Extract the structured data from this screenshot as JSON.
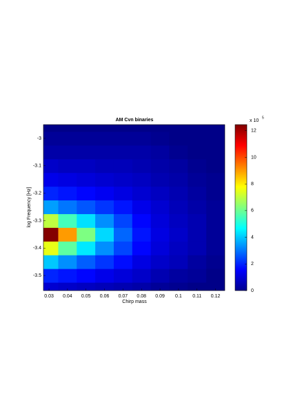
{
  "chart_data": {
    "type": "contour",
    "title": "AM Cvn binaries",
    "xlabel": "Chirp mass",
    "ylabel": "log Frequency [Hz]",
    "x": [
      0.03,
      0.04,
      0.05,
      0.06,
      0.07,
      0.08,
      0.09,
      0.1,
      0.11,
      0.12
    ],
    "y": [
      -3.55,
      -3.5,
      -3.45,
      -3.4,
      -3.35,
      -3.3,
      -3.25,
      -3.2,
      -3.15,
      -3.1,
      -3.05,
      -3.0,
      -2.95
    ],
    "z": [
      [
        1,
        0.9,
        0.8,
        0.7,
        0.6,
        0.5,
        0.3,
        0.2,
        0.1,
        0.1
      ],
      [
        2,
        1.8,
        1.6,
        1.3,
        1.1,
        0.9,
        0.6,
        0.4,
        0.3,
        0.1
      ],
      [
        4,
        3.3,
        2.7,
        2.2,
        1.7,
        1.2,
        0.9,
        0.7,
        0.4,
        0.2
      ],
      [
        7.5,
        5.8,
        4.4,
        3.3,
        2.4,
        1.6,
        1.1,
        0.8,
        0.6,
        0.3
      ],
      [
        12.4,
        9,
        6.2,
        4.2,
        2.8,
        1.8,
        1.2,
        0.9,
        0.6,
        0.3
      ],
      [
        7,
        5.5,
        4.3,
        3.3,
        2.4,
        1.6,
        1.1,
        0.8,
        0.6,
        0.3
      ],
      [
        3.5,
        3,
        2.6,
        2.2,
        1.8,
        1.3,
        1,
        0.7,
        0.5,
        0.3
      ],
      [
        2,
        1.8,
        1.6,
        1.4,
        1.2,
        1,
        0.8,
        0.6,
        0.4,
        0.2
      ],
      [
        1.3,
        1.2,
        1.1,
        1,
        0.9,
        0.8,
        0.6,
        0.5,
        0.3,
        0.2
      ],
      [
        0.9,
        0.8,
        0.8,
        0.7,
        0.7,
        0.6,
        0.5,
        0.4,
        0.2,
        0.1
      ],
      [
        0.5,
        0.5,
        0.5,
        0.5,
        0.5,
        0.5,
        0.4,
        0.2,
        0.1,
        0.1
      ],
      [
        0.3,
        0.3,
        0.3,
        0.3,
        0.3,
        0.3,
        0.2,
        0.1,
        0.1,
        0.1
      ],
      [
        0.1,
        0.1,
        0.1,
        0.1,
        0.1,
        0.1,
        0.1,
        0.1,
        0.1,
        0.1
      ]
    ],
    "xlim": [
      0.027,
      0.125
    ],
    "xticks": [
      0.03,
      0.04,
      0.05,
      0.06,
      0.07,
      0.08,
      0.09,
      0.1,
      0.11,
      0.12
    ],
    "ylim": [
      -3.555,
      -2.95
    ],
    "yticks": [
      -3.5,
      -3.4,
      -3.3,
      -3.2,
      -3.1,
      -3
    ],
    "clim": [
      0,
      12.45
    ],
    "cticks": [
      0,
      2,
      4,
      6,
      8,
      10,
      12
    ],
    "colorbar_label": "x 10",
    "colorbar_exponent": "5",
    "colormap": "jet"
  }
}
